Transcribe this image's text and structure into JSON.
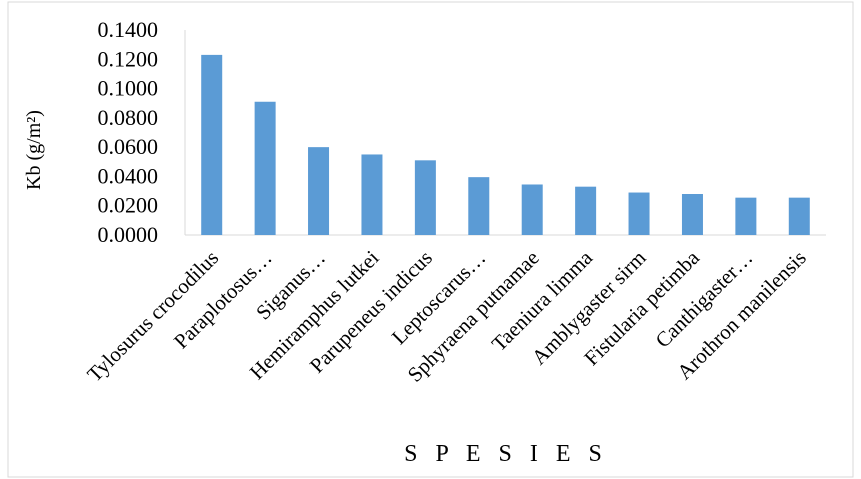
{
  "chart_data": {
    "type": "bar",
    "xlabel": "S P E S I E S",
    "ylabel": "Kb (g/m²)",
    "ylim": [
      0,
      0.14
    ],
    "ytick_step": 0.02,
    "yticks": [
      "0.0000",
      "0.0200",
      "0.0400",
      "0.0600",
      "0.0800",
      "0.1000",
      "0.1200",
      "0.1400"
    ],
    "categories": [
      "Tylosurus crocodilus",
      "Paraplotosus…",
      "Siganus…",
      "Hemiramphus lutkei",
      "Parupeneus indicus",
      "Leptoscarus…",
      "Sphyraena putnamae",
      "Taeniura limma",
      "Amblygaster sirm",
      "Fistularia petimba",
      "Canthigaster…",
      "Arothron manilensis"
    ],
    "values": [
      0.123,
      0.091,
      0.06,
      0.055,
      0.051,
      0.0395,
      0.0345,
      0.033,
      0.029,
      0.028,
      0.0255,
      0.0255
    ],
    "bar_color": "#5B9BD5",
    "axis_color": "#D9D9D9",
    "grid": false,
    "legend": "none"
  }
}
